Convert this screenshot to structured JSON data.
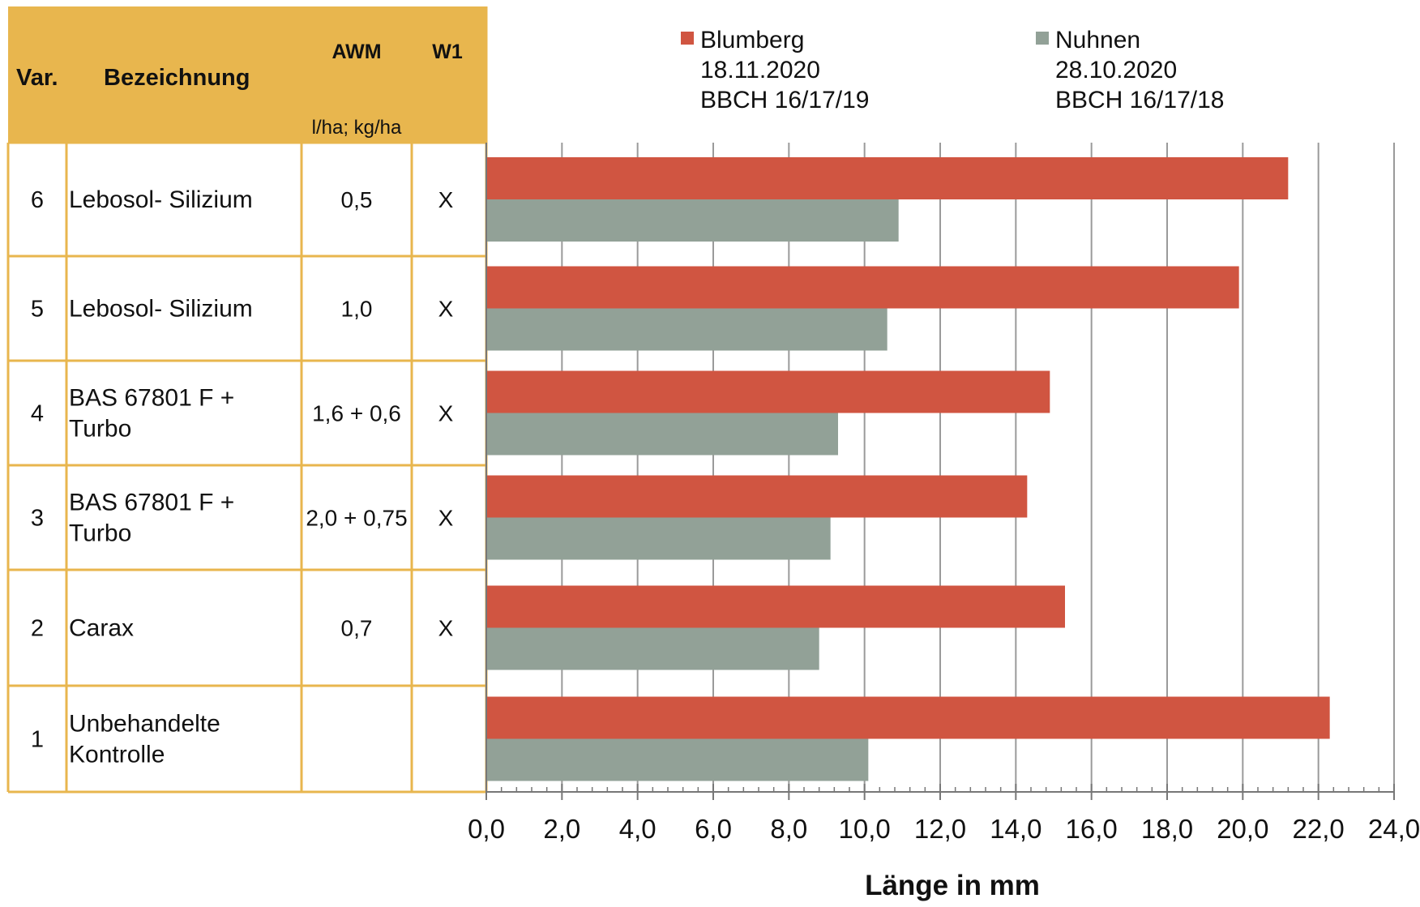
{
  "table": {
    "headers": {
      "var": "Var.",
      "bezeichnung": "Bezeichnung",
      "awm": "AWM",
      "awm_unit": "l/ha; kg/ha",
      "w1": "W1"
    },
    "header_color": "#E8B64E",
    "border_color": "#E8B64E",
    "rows": [
      {
        "var": "6",
        "bezeichnung": [
          "Lebosol- Silizium"
        ],
        "awm": "0,5",
        "w1": "X"
      },
      {
        "var": "5",
        "bezeichnung": [
          "Lebosol- Silizium"
        ],
        "awm": "1,0",
        "w1": "X"
      },
      {
        "var": "4",
        "bezeichnung": [
          "BAS 67801 F +",
          "Turbo"
        ],
        "awm": "1,6 + 0,6",
        "w1": "X"
      },
      {
        "var": "3",
        "bezeichnung": [
          "BAS 67801 F +",
          "Turbo"
        ],
        "awm": "2,0 + 0,75",
        "w1": "X"
      },
      {
        "var": "2",
        "bezeichnung": [
          "Carax"
        ],
        "awm": "0,7",
        "w1": "X"
      },
      {
        "var": "1",
        "bezeichnung": [
          "Unbehandelte",
          "Kontrolle"
        ],
        "awm": "",
        "w1": ""
      }
    ]
  },
  "chart_data": {
    "type": "bar",
    "orientation": "horizontal",
    "categories": [
      "6",
      "5",
      "4",
      "3",
      "2",
      "1"
    ],
    "series": [
      {
        "name": "Blumberg",
        "legend_lines": [
          "Blumberg",
          "18.11.2020",
          "BBCH 16/17/19"
        ],
        "color": "#D05541",
        "values": [
          21.2,
          19.9,
          14.9,
          14.3,
          15.3,
          22.3
        ]
      },
      {
        "name": "Nuhnen",
        "legend_lines": [
          "Nuhnen",
          "28.10.2020",
          "BBCH 16/17/18"
        ],
        "color": "#92A197",
        "values": [
          10.9,
          10.6,
          9.3,
          9.1,
          8.8,
          10.1
        ]
      }
    ],
    "xlabel": "Länge in mm",
    "xlim": [
      0,
      24
    ],
    "x_ticks": [
      "0,0",
      "2,0",
      "4,0",
      "6,0",
      "8,0",
      "10,0",
      "12,0",
      "14,0",
      "16,0",
      "18,0",
      "20,0",
      "22,0",
      "24,0"
    ],
    "grid": "vertical",
    "legend_position": "top"
  }
}
